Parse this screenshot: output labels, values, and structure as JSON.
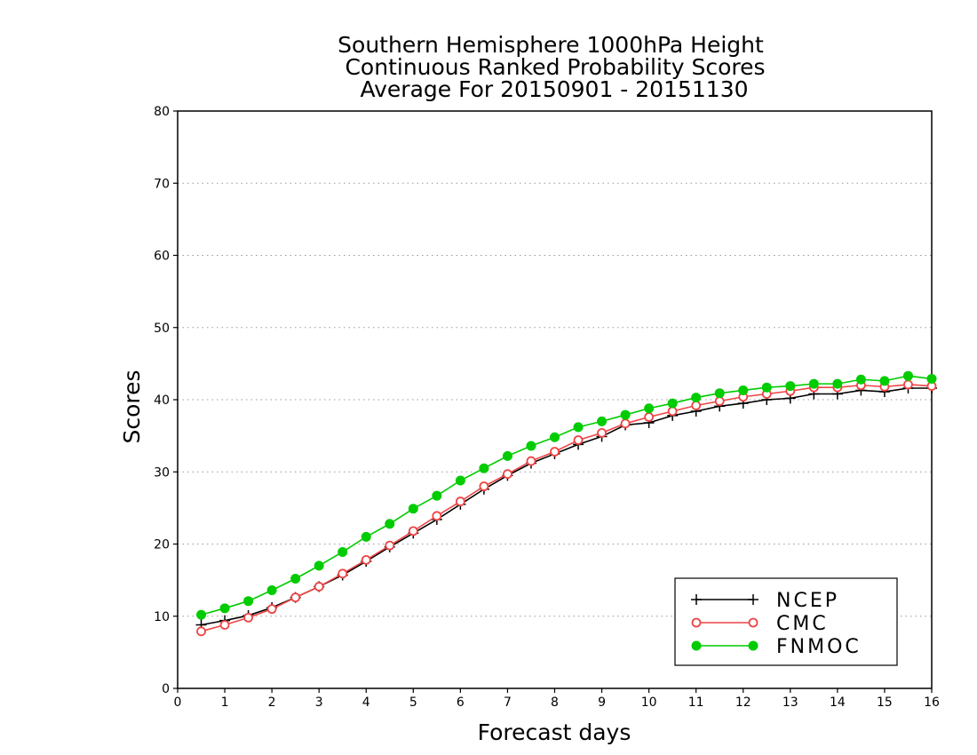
{
  "chart_data": {
    "type": "line",
    "title_lines": [
      "Southern Hemisphere 1000hPa Height",
      "Continuous Ranked Probability Scores",
      "Average For 20150901 - 20151130"
    ],
    "xlabel": "Forecast days",
    "ylabel": "Scores",
    "xlim": [
      0,
      16
    ],
    "ylim": [
      0,
      80
    ],
    "xticks": [
      0,
      1,
      2,
      3,
      4,
      5,
      6,
      7,
      8,
      9,
      10,
      11,
      12,
      13,
      14,
      15,
      16
    ],
    "yticks": [
      0,
      10,
      20,
      30,
      40,
      50,
      60,
      70,
      80
    ],
    "grid": "horizontal dotted",
    "legend_position": "bottom-right",
    "x": [
      0.5,
      1,
      1.5,
      2,
      2.5,
      3,
      3.5,
      4,
      4.5,
      5,
      5.5,
      6,
      6.5,
      7,
      7.5,
      8,
      8.5,
      9,
      9.5,
      10,
      10.5,
      11,
      11.5,
      12,
      12.5,
      13,
      13.5,
      14,
      14.5,
      15,
      15.5,
      16
    ],
    "series": [
      {
        "name": "NCEP",
        "color": "#000000",
        "marker": "plus",
        "values": [
          8.8,
          9.4,
          10.1,
          11.2,
          12.6,
          14.1,
          15.7,
          17.6,
          19.6,
          21.5,
          23.4,
          25.5,
          27.6,
          29.5,
          31.2,
          32.5,
          33.8,
          34.9,
          36.5,
          36.8,
          37.8,
          38.4,
          39.1,
          39.5,
          40.0,
          40.2,
          40.8,
          40.8,
          41.3,
          41.1,
          41.6,
          41.6
        ]
      },
      {
        "name": "CMC",
        "color": "#ee4444",
        "marker": "open-circle",
        "values": [
          7.9,
          8.8,
          9.8,
          11.0,
          12.6,
          14.1,
          15.9,
          17.8,
          19.8,
          21.8,
          23.9,
          25.9,
          28.0,
          29.7,
          31.5,
          32.8,
          34.4,
          35.4,
          36.7,
          37.6,
          38.4,
          39.2,
          39.8,
          40.4,
          40.8,
          41.2,
          41.7,
          41.7,
          42.0,
          41.8,
          42.1,
          41.9
        ]
      },
      {
        "name": "FNMOC",
        "color": "#00cc00",
        "marker": "filled-circle",
        "values": [
          10.2,
          11.1,
          12.1,
          13.6,
          15.2,
          17.0,
          18.9,
          21.0,
          22.8,
          24.9,
          26.7,
          28.8,
          30.5,
          32.2,
          33.6,
          34.8,
          36.2,
          37.0,
          37.9,
          38.8,
          39.5,
          40.3,
          40.9,
          41.3,
          41.7,
          41.9,
          42.2,
          42.2,
          42.8,
          42.6,
          43.3,
          42.9
        ]
      }
    ]
  }
}
